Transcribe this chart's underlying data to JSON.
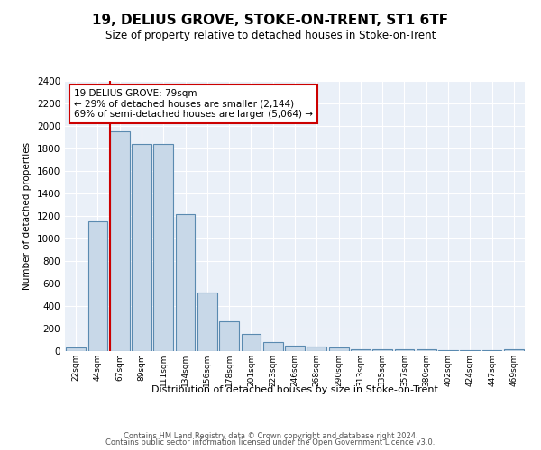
{
  "title": "19, DELIUS GROVE, STOKE-ON-TRENT, ST1 6TF",
  "subtitle": "Size of property relative to detached houses in Stoke-on-Trent",
  "xlabel": "Distribution of detached houses by size in Stoke-on-Trent",
  "ylabel": "Number of detached properties",
  "bar_labels": [
    "22sqm",
    "44sqm",
    "67sqm",
    "89sqm",
    "111sqm",
    "134sqm",
    "156sqm",
    "178sqm",
    "201sqm",
    "223sqm",
    "246sqm",
    "268sqm",
    "290sqm",
    "313sqm",
    "335sqm",
    "357sqm",
    "380sqm",
    "402sqm",
    "424sqm",
    "447sqm",
    "469sqm"
  ],
  "bar_values": [
    30,
    1150,
    1950,
    1840,
    1840,
    1215,
    520,
    265,
    155,
    80,
    45,
    40,
    35,
    20,
    20,
    20,
    20,
    5,
    5,
    5,
    20
  ],
  "bar_color": "#c8d8e8",
  "bar_edge_color": "#5a8ab0",
  "vline_color": "#cc0000",
  "vline_x_index": 2,
  "ylim": [
    0,
    2400
  ],
  "yticks": [
    0,
    200,
    400,
    600,
    800,
    1000,
    1200,
    1400,
    1600,
    1800,
    2000,
    2200,
    2400
  ],
  "annotation_text": "19 DELIUS GROVE: 79sqm\n← 29% of detached houses are smaller (2,144)\n69% of semi-detached houses are larger (5,064) →",
  "annotation_box_color": "#ffffff",
  "annotation_edge_color": "#cc0000",
  "footer_line1": "Contains HM Land Registry data © Crown copyright and database right 2024.",
  "footer_line2": "Contains public sector information licensed under the Open Government Licence v3.0.",
  "plot_bg_color": "#eaf0f8"
}
